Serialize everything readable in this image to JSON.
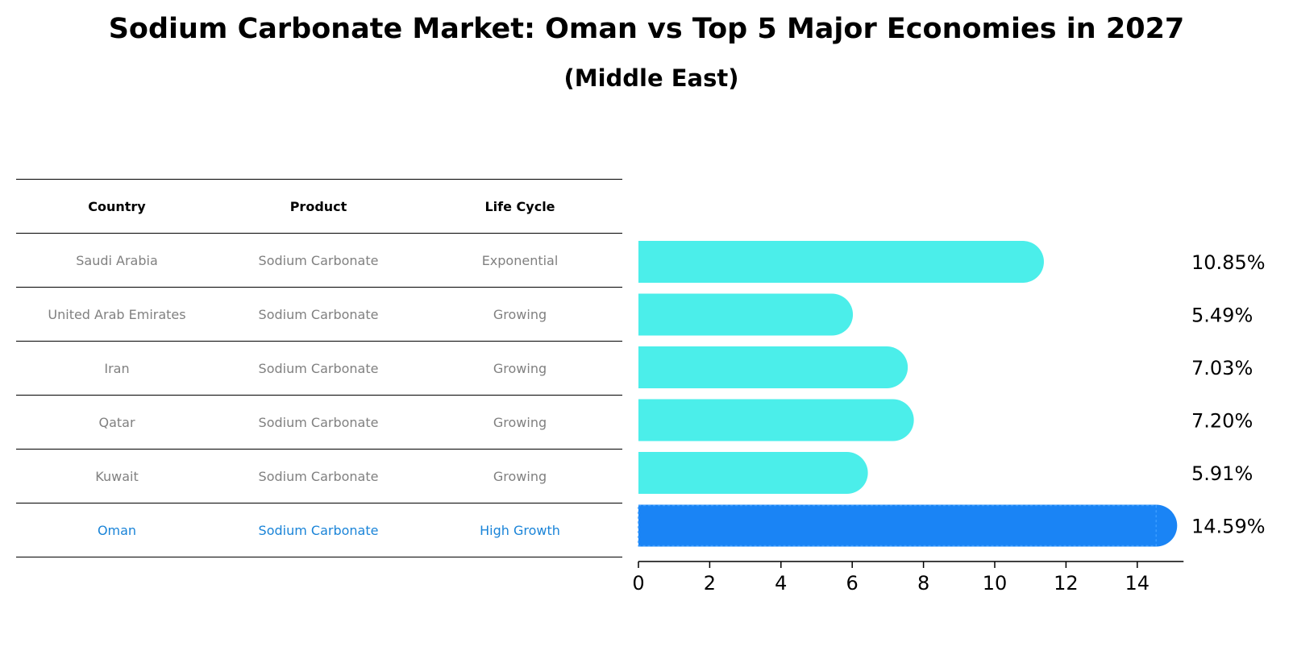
{
  "chart_data": {
    "type": "bar",
    "orientation": "horizontal",
    "title": "Sodium Carbonate Market: Oman vs Top 5 Major Economies in 2027",
    "subtitle": "(Middle East)",
    "categories": [
      "Saudi Arabia",
      "United Arab Emirates",
      "Iran",
      "Qatar",
      "Kuwait",
      "Oman"
    ],
    "values": [
      10.85,
      5.49,
      7.03,
      7.2,
      5.91,
      14.59
    ],
    "value_labels": [
      "10.85%",
      "5.49%",
      "7.03%",
      "7.20%",
      "5.91%",
      "14.59%"
    ],
    "highlight": "Oman",
    "colors": {
      "normal": "#4beeea",
      "highlight": "#1a84f5"
    },
    "xlim": [
      0,
      15.3
    ],
    "xticks": [
      0,
      2,
      4,
      6,
      8,
      10,
      12,
      14
    ],
    "xlabel": "",
    "ylabel": ""
  },
  "table": {
    "headers": [
      "Country",
      "Product",
      "Life Cycle"
    ],
    "rows": [
      [
        "Saudi Arabia",
        "Sodium Carbonate",
        "Exponential"
      ],
      [
        "United Arab Emirates",
        "Sodium Carbonate",
        "Growing"
      ],
      [
        "Iran",
        "Sodium Carbonate",
        "Growing"
      ],
      [
        "Qatar",
        "Sodium Carbonate",
        "Growing"
      ],
      [
        "Kuwait",
        "Sodium Carbonate",
        "Growing"
      ],
      [
        "Oman",
        "Sodium Carbonate",
        "High Growth"
      ]
    ]
  }
}
